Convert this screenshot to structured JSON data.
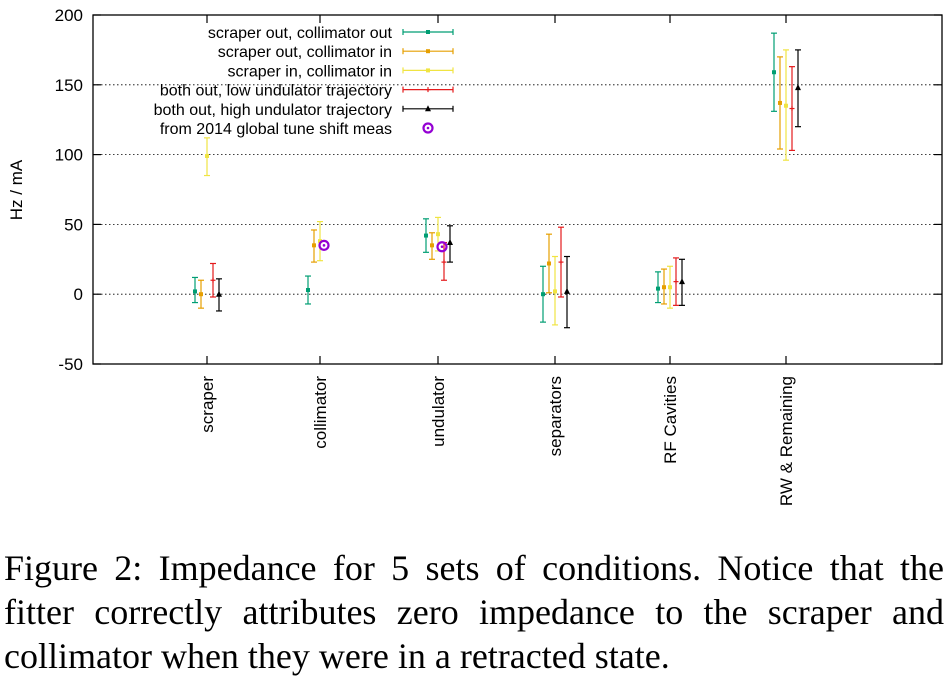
{
  "chart_data": {
    "type": "scatter",
    "ylabel": "Hz / mA",
    "xlabel": "",
    "ylim": [
      -50,
      200
    ],
    "yticks": [
      -50,
      0,
      50,
      100,
      150,
      200
    ],
    "grid_y_values": [
      0,
      50,
      100,
      150
    ],
    "grid": "horizontal dotted",
    "legend_position": "top-left",
    "categories": [
      "scraper",
      "collimator",
      "undulator",
      "separators",
      "RF Cavities",
      "RW & Remaining"
    ],
    "series": [
      {
        "name": "scraper out, collimator out",
        "color": "#009e73",
        "marker": "square",
        "points": [
          {
            "category": "scraper",
            "y": 2,
            "low": -6,
            "high": 12
          },
          {
            "category": "collimator",
            "y": 3,
            "low": -7,
            "high": 13
          },
          {
            "category": "undulator",
            "y": 42,
            "low": 30,
            "high": 54
          },
          {
            "category": "separators",
            "y": 0,
            "low": -20,
            "high": 20
          },
          {
            "category": "RF Cavities",
            "y": 4,
            "low": -6,
            "high": 16
          },
          {
            "category": "RW & Remaining",
            "y": 159,
            "low": 131,
            "high": 187
          }
        ]
      },
      {
        "name": "scraper out, collimator in",
        "color": "#e69f00",
        "marker": "square",
        "points": [
          {
            "category": "scraper",
            "y": 0,
            "low": -10,
            "high": 10
          },
          {
            "category": "collimator",
            "y": 35,
            "low": 23,
            "high": 46
          },
          {
            "category": "undulator",
            "y": 35,
            "low": 25,
            "high": 44
          },
          {
            "category": "separators",
            "y": 22,
            "low": 1,
            "high": 43
          },
          {
            "category": "RF Cavities",
            "y": 5,
            "low": -7,
            "high": 18
          },
          {
            "category": "RW & Remaining",
            "y": 137,
            "low": 104,
            "high": 170
          }
        ]
      },
      {
        "name": "scraper in, collimator in",
        "color": "#f0e442",
        "marker": "square",
        "points": [
          {
            "category": "scraper",
            "y": 99,
            "low": 85,
            "high": 112
          },
          {
            "category": "collimator",
            "y": 38,
            "low": 24,
            "high": 52
          },
          {
            "category": "undulator",
            "y": 43,
            "low": 31,
            "high": 55
          },
          {
            "category": "separators",
            "y": 2,
            "low": -22,
            "high": 27
          },
          {
            "category": "RF Cavities",
            "y": 5,
            "low": -10,
            "high": 20
          },
          {
            "category": "RW & Remaining",
            "y": 135,
            "low": 96,
            "high": 175
          }
        ]
      },
      {
        "name": "both out, low undulator trajectory",
        "color": "#e41a1c",
        "marker": "plus",
        "points": [
          {
            "category": "scraper",
            "y": 10,
            "low": -2,
            "high": 22
          },
          {
            "category": "undulator",
            "y": 23,
            "low": 10,
            "high": 37
          },
          {
            "category": "separators",
            "y": 23,
            "low": -2,
            "high": 48
          },
          {
            "category": "RF Cavities",
            "y": 9,
            "low": -8,
            "high": 26
          },
          {
            "category": "RW & Remaining",
            "y": 133,
            "low": 103,
            "high": 163
          }
        ]
      },
      {
        "name": "both out, high undulator trajectory",
        "color": "#000000",
        "marker": "triangle",
        "points": [
          {
            "category": "scraper",
            "y": 0,
            "low": -12,
            "high": 11
          },
          {
            "category": "undulator",
            "y": 37,
            "low": 23,
            "high": 49
          },
          {
            "category": "separators",
            "y": 2,
            "low": -24,
            "high": 27
          },
          {
            "category": "RF Cavities",
            "y": 9,
            "low": -8,
            "high": 25
          },
          {
            "category": "RW & Remaining",
            "y": 148,
            "low": 120,
            "high": 175
          }
        ]
      },
      {
        "name": "from 2014 global tune shift meas",
        "color": "#9400d3",
        "marker": "circle",
        "points": [
          {
            "category": "collimator",
            "y": 35
          },
          {
            "category": "undulator",
            "y": 34
          }
        ]
      }
    ]
  },
  "caption": "Figure 2: Impedance for 5 sets of conditions. Notice that the fitter correctly attributes zero impedance to the scraper and collimator when they were in a retracted state."
}
